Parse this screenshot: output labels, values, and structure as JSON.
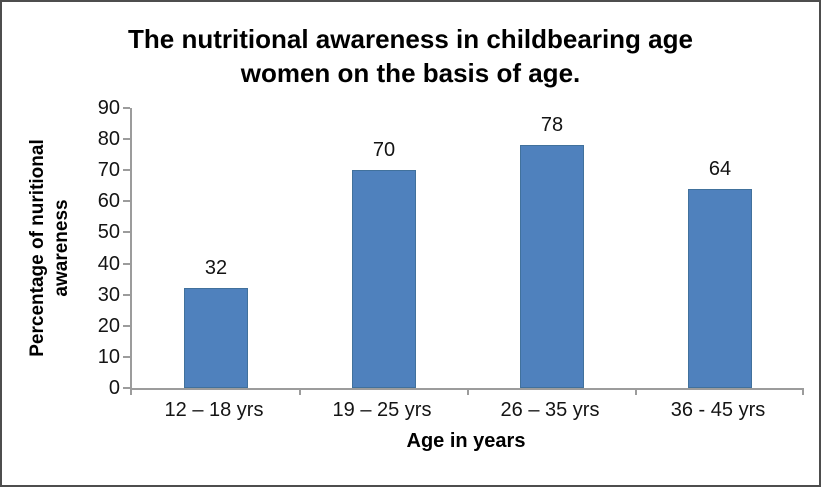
{
  "frame": {
    "background": "#ffffff",
    "border_color": "#4d4d4d"
  },
  "chart_data": {
    "type": "bar",
    "title": "The nutritional awareness in childbearing age women on the basis of age.",
    "title_lines": [
      "The nutritional awareness in childbearing age",
      "women on the basis of age."
    ],
    "categories": [
      "12 – 18 yrs",
      "19 – 25 yrs",
      "26 – 35 yrs",
      "36 - 45 yrs"
    ],
    "values": [
      32,
      70,
      78,
      64
    ],
    "data_labels": [
      "32",
      "70",
      "78",
      "64"
    ],
    "xlabel": "Age in years",
    "ylabel": "Percentage of nuritional awareness",
    "ylabel_lines": [
      "Percentage of  nuritional",
      "awareness"
    ],
    "yticks": [
      0,
      10,
      20,
      30,
      40,
      50,
      60,
      70,
      80,
      90
    ],
    "ylim": [
      0,
      90
    ],
    "grid": false,
    "legend_position": "none",
    "bar_color": "#4f81bd",
    "bar_border_color": "#41719c",
    "axis_color": "#9c9c9c",
    "label_color": "#141414"
  }
}
